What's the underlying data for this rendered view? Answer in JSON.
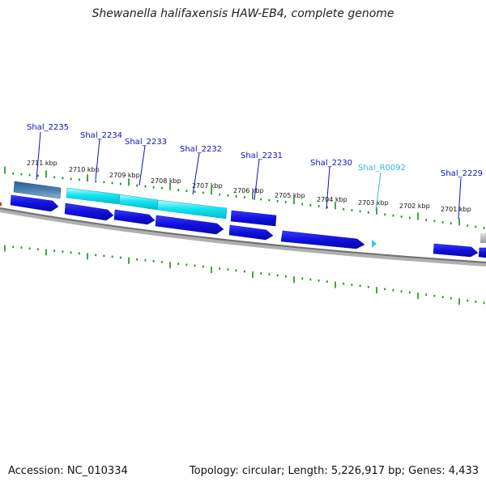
{
  "title": "Shewanella halifaxensis HAW-EB4, complete genome",
  "footer": {
    "accession": "Accession: NC_010334",
    "summary": "Topology: circular; Length: 5,226,917 bp; Genes: 4,433"
  },
  "colors": {
    "cds": "#1010e0",
    "cds_light": "#00e4f0",
    "rna": "#38c8e8",
    "steel": "#4a7fb0",
    "tick": "#1a8a1a",
    "backbone": "#707070",
    "gene_label": "#1010c0",
    "rna_label": "#30b8e0"
  },
  "scale": {
    "ticks": [
      {
        "label": "2711 kbp",
        "kbp": 2711
      },
      {
        "label": "2710 kbp",
        "kbp": 2710
      },
      {
        "label": "2709 kbp",
        "kbp": 2709
      },
      {
        "label": "2708 kbp",
        "kbp": 2708
      },
      {
        "label": "2707 kbp",
        "kbp": 2707
      },
      {
        "label": "2706 kbp",
        "kbp": 2706
      },
      {
        "label": "2705 kbp",
        "kbp": 2705
      },
      {
        "label": "2704 kbp",
        "kbp": 2704
      },
      {
        "label": "2703 kbp",
        "kbp": 2703
      },
      {
        "label": "2702 kbp",
        "kbp": 2702
      },
      {
        "label": "2701 kbp",
        "kbp": 2701
      }
    ]
  },
  "genes": [
    {
      "label": "Shal_2235",
      "type": "CDS"
    },
    {
      "label": "Shal_2234",
      "type": "CDS"
    },
    {
      "label": "Shal_2233",
      "type": "CDS"
    },
    {
      "label": "Shal_2232",
      "type": "CDS"
    },
    {
      "label": "Shal_2231",
      "type": "CDS"
    },
    {
      "label": "Shal_2230",
      "type": "CDS"
    },
    {
      "label": "Shal_R0092",
      "type": "RNA"
    },
    {
      "label": "Shal_2229",
      "type": "CDS"
    }
  ]
}
